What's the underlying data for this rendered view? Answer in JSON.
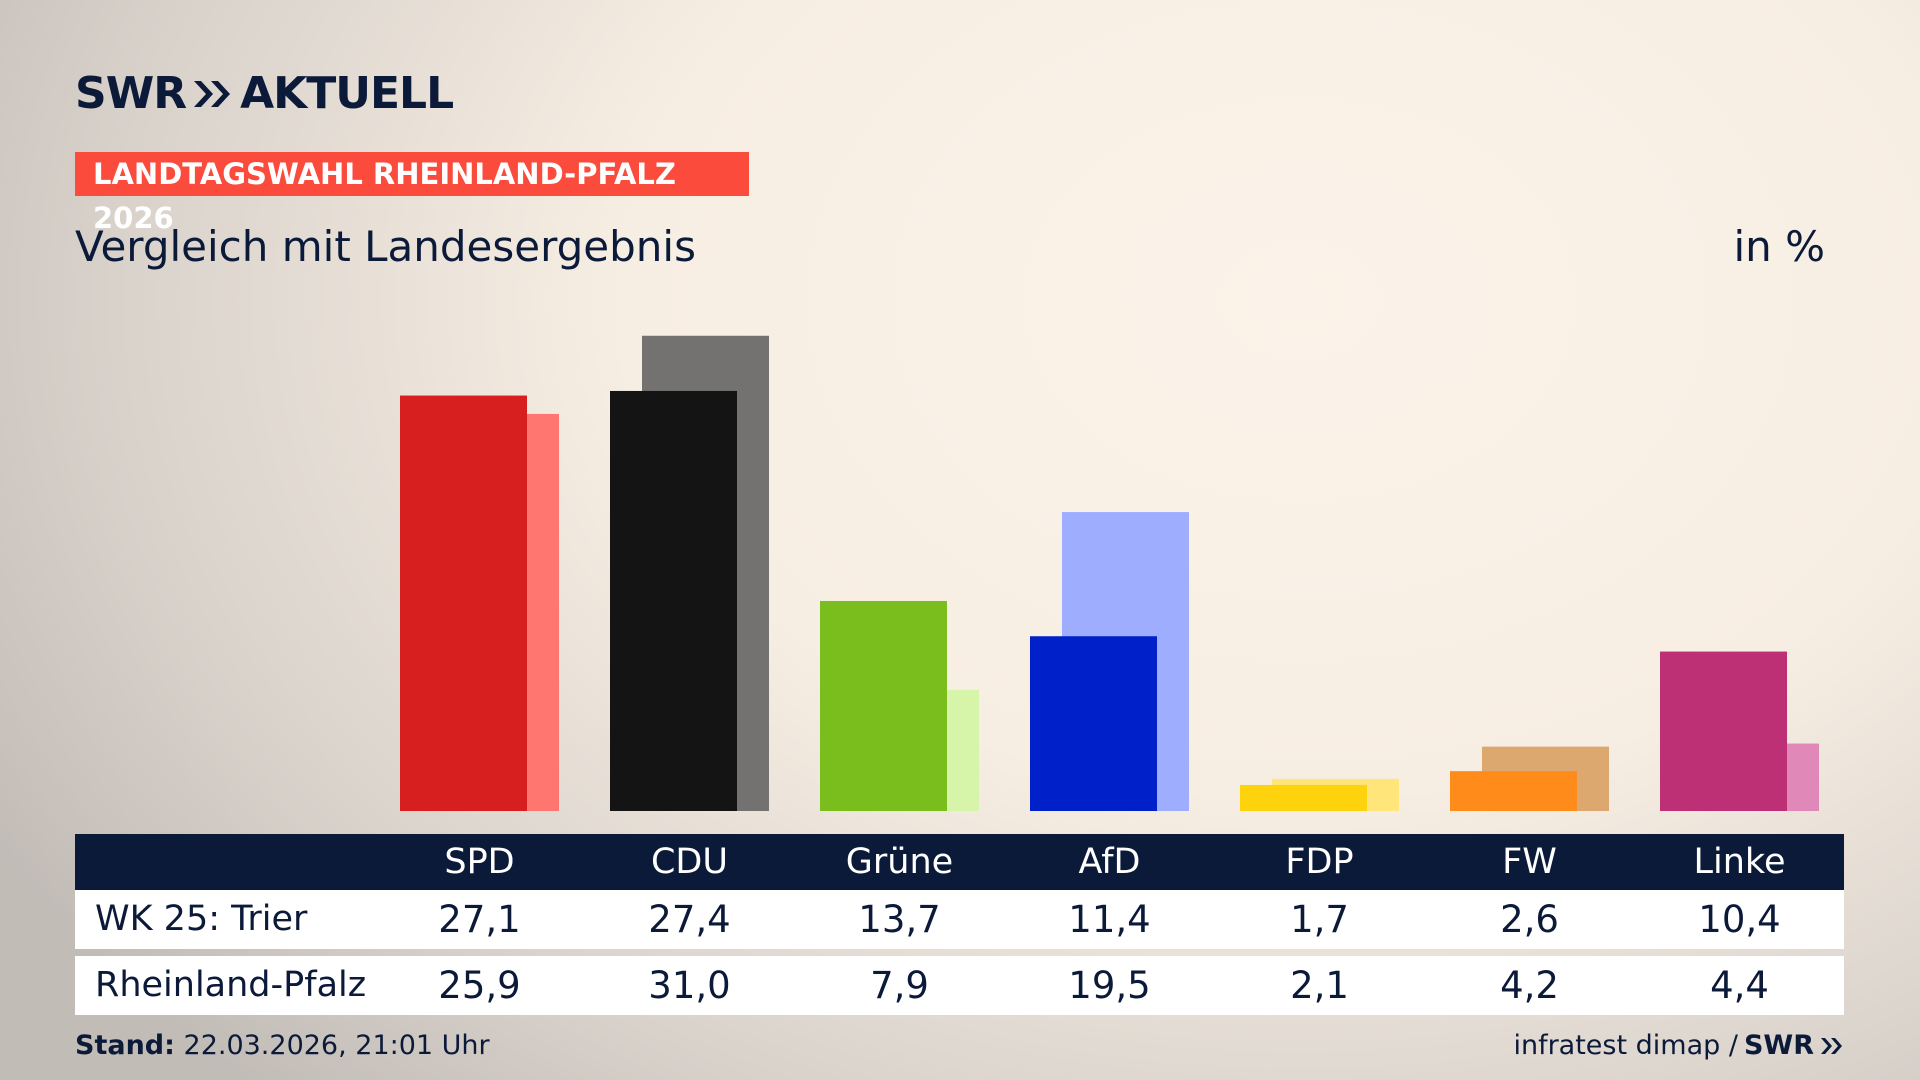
{
  "chart_data": {
    "type": "bar",
    "brand": {
      "name": "SWR",
      "product": "AKTUELL"
    },
    "label": "LANDTAGSWAHL RHEINLAND-PFALZ 2026",
    "title": "Vergleich mit Landesergebnis",
    "unit": "in %",
    "categories": [
      "SPD",
      "CDU",
      "Grüne",
      "AfD",
      "FDP",
      "FW",
      "Linke"
    ],
    "series": [
      {
        "name": "WK 25: Trier",
        "color": [
          "#d71f1f",
          "#141414",
          "#7abe1e",
          "#0021c9",
          "#ffd20e",
          "#ff8c1a",
          "#be3075"
        ],
        "values": [
          27.1,
          27.4,
          13.7,
          11.4,
          1.7,
          2.6,
          10.4
        ],
        "value_labels": [
          "27,1",
          "27,4",
          "13,7",
          "11,4",
          "1,7",
          "2,6",
          "10,4"
        ]
      },
      {
        "name": "Rheinland-Pfalz",
        "color": [
          "#ff7570",
          "#737271",
          "#d7f5a8",
          "#9fadff",
          "#ffe57a",
          "#dca870",
          "#e088b8"
        ],
        "values": [
          25.9,
          31.0,
          7.9,
          19.5,
          2.1,
          4.2,
          4.4
        ],
        "value_labels": [
          "25,9",
          "31,0",
          "7,9",
          "19,5",
          "2,1",
          "4,2",
          "4,4"
        ]
      }
    ],
    "footer": {
      "stand_label": "Stand:",
      "stand": "22.03.2026, 21:01 Uhr",
      "source": "infratest dimap /",
      "source_brand": "SWR"
    }
  }
}
